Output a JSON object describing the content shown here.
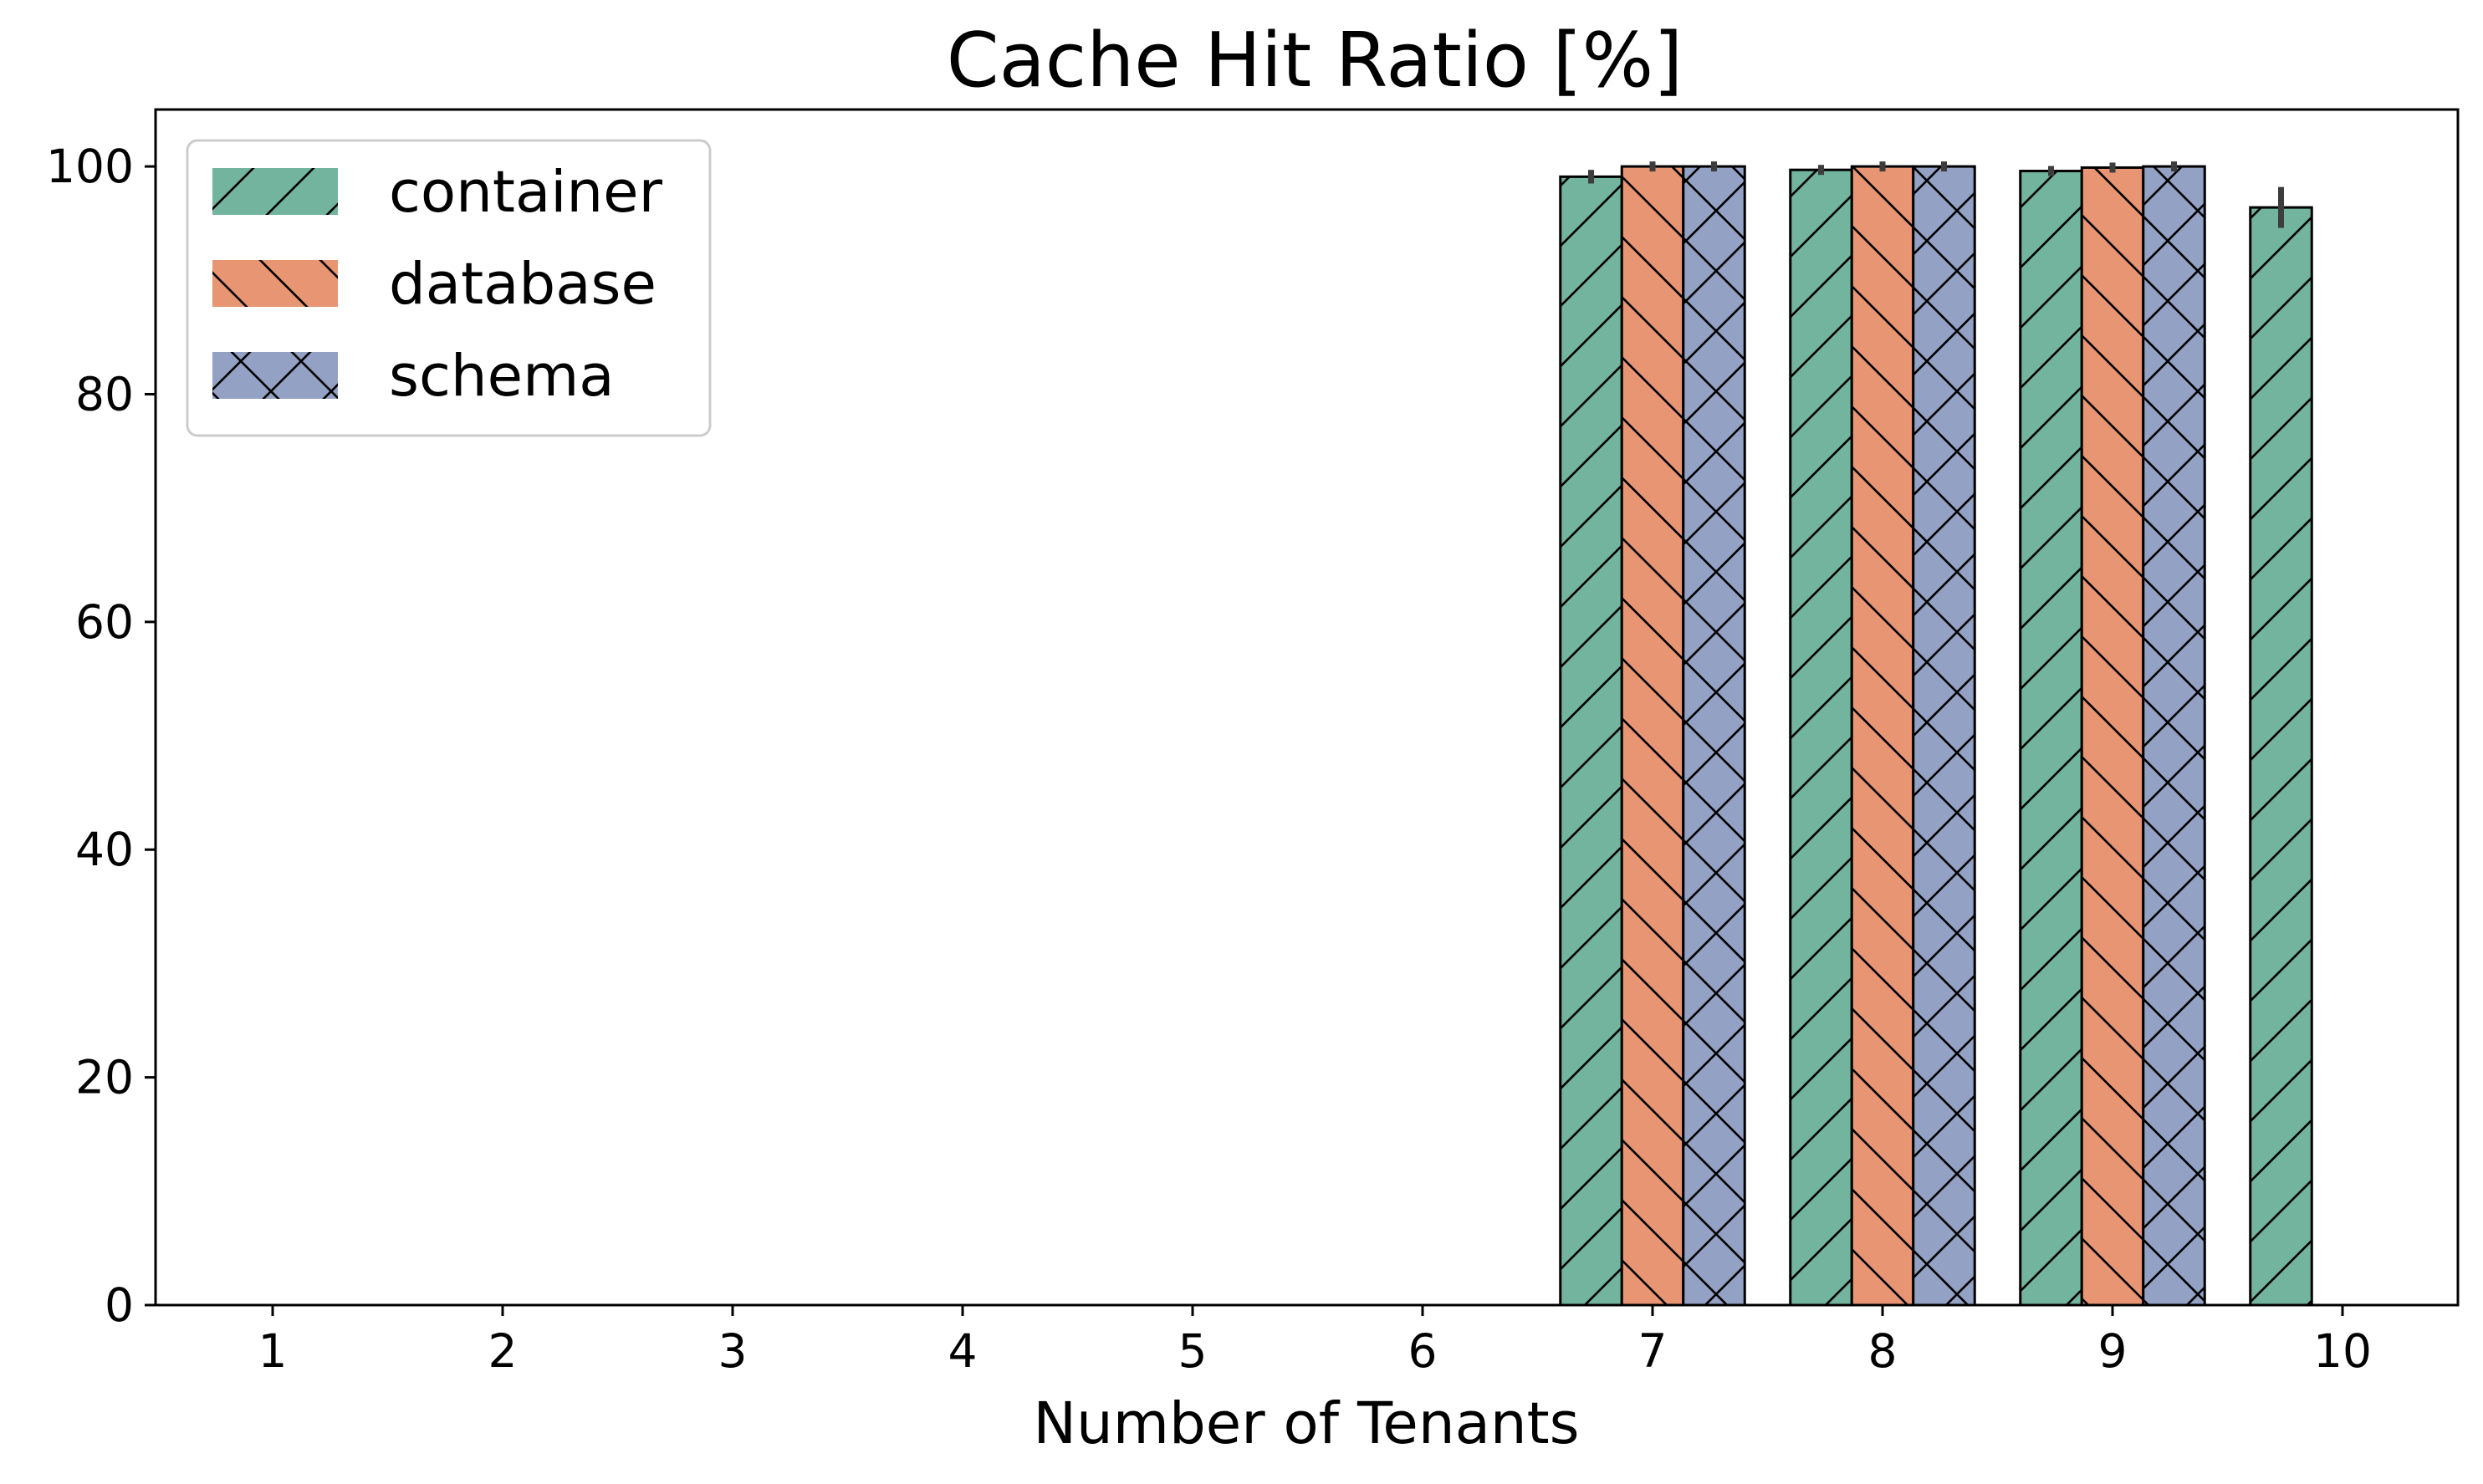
{
  "chart_data": {
    "type": "bar",
    "title": "Cache Hit Ratio [%]",
    "xlabel": "Number of Tenants",
    "ylabel": "",
    "categories": [
      "1",
      "2",
      "3",
      "4",
      "5",
      "6",
      "7",
      "8",
      "9",
      "10"
    ],
    "ylim": [
      0,
      105
    ],
    "yticks": [
      "0",
      "20",
      "40",
      "60",
      "80",
      "100"
    ],
    "legend_position": "top-left",
    "grid": false,
    "series": [
      {
        "name": "container",
        "color": "#73b49f",
        "hatch": "forward-diagonal",
        "values": [
          0,
          0,
          0,
          0,
          0,
          0,
          99.1,
          99.7,
          99.6,
          96.4
        ],
        "errors": [
          0,
          0,
          0,
          0,
          0,
          0,
          0.6,
          0.3,
          0.2,
          1.8
        ]
      },
      {
        "name": "database",
        "color": "#e89574",
        "hatch": "backward-diagonal",
        "values": [
          0,
          0,
          0,
          0,
          0,
          0,
          100.0,
          100.0,
          99.9,
          0
        ],
        "errors": [
          0,
          0,
          0,
          0,
          0,
          0,
          0.2,
          0.2,
          0.2,
          0
        ]
      },
      {
        "name": "schema",
        "color": "#93a1c4",
        "hatch": "cross",
        "values": [
          0,
          0,
          0,
          0,
          0,
          0,
          100.0,
          100.0,
          100.0,
          0
        ],
        "errors": [
          0,
          0,
          0,
          0,
          0,
          0,
          0.2,
          0.1,
          0.2,
          0
        ]
      }
    ]
  }
}
